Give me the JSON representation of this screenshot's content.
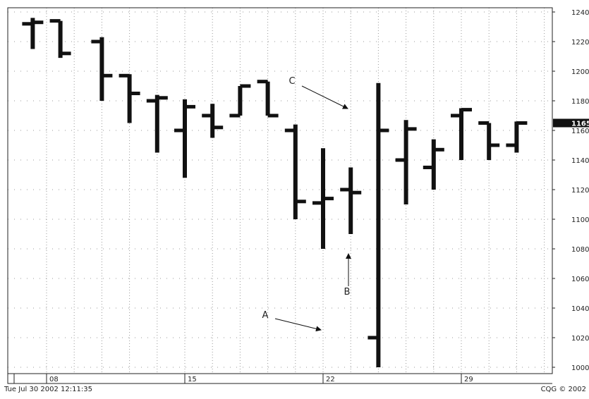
{
  "chart_data": {
    "type": "ohlc-bar",
    "ylim": [
      1000,
      1240
    ],
    "y_ticks": [
      1000,
      1020,
      1040,
      1060,
      1080,
      1100,
      1120,
      1140,
      1160,
      1180,
      1200,
      1220,
      1240
    ],
    "x_tick_labels": [
      "08",
      "15",
      "22",
      "29"
    ],
    "grid": true,
    "last_price_label": "1165",
    "last_price": 1165,
    "bars": [
      {
        "high": 1236,
        "low": 1215,
        "open": 1232,
        "close": 1233
      },
      {
        "high": 1234,
        "low": 1209,
        "open": 1234,
        "close": 1212
      },
      {
        "high": 1223,
        "low": 1180,
        "open": 1220,
        "close": 1197
      },
      {
        "high": 1198,
        "low": 1165,
        "open": 1197,
        "close": 1185
      },
      {
        "high": 1184,
        "low": 1145,
        "open": 1180,
        "close": 1182
      },
      {
        "high": 1181,
        "low": 1128,
        "open": 1160,
        "close": 1176
      },
      {
        "high": 1178,
        "low": 1155,
        "open": 1170,
        "close": 1162
      },
      {
        "high": 1190,
        "low": 1170,
        "open": 1170,
        "close": 1190
      },
      {
        "high": 1193,
        "low": 1170,
        "open": 1193,
        "close": 1170
      },
      {
        "high": 1164,
        "low": 1100,
        "open": 1160,
        "close": 1112
      },
      {
        "high": 1148,
        "low": 1080,
        "open": 1111,
        "close": 1114
      },
      {
        "high": 1135,
        "low": 1090,
        "open": 1120,
        "close": 1118
      },
      {
        "high": 1192,
        "low": 1000,
        "open": 1020,
        "close": 1160
      },
      {
        "high": 1167,
        "low": 1110,
        "open": 1140,
        "close": 1161
      },
      {
        "high": 1154,
        "low": 1120,
        "open": 1135,
        "close": 1147
      },
      {
        "high": 1175,
        "low": 1140,
        "open": 1170,
        "close": 1174
      },
      {
        "high": 1165,
        "low": 1140,
        "open": 1165,
        "close": 1150
      },
      {
        "high": 1166,
        "low": 1145,
        "open": 1150,
        "close": 1165
      }
    ],
    "annotations": [
      {
        "label": "A"
      },
      {
        "label": "B"
      },
      {
        "label": "C"
      }
    ]
  },
  "footer": {
    "timestamp": "Tue Jul 30 2002 12:11:35",
    "copyright": "CQG © 2002"
  },
  "colors": {
    "bar": "#111111",
    "grid": "#9a9a9a",
    "frame": "#222222",
    "background": "#ffffff"
  }
}
